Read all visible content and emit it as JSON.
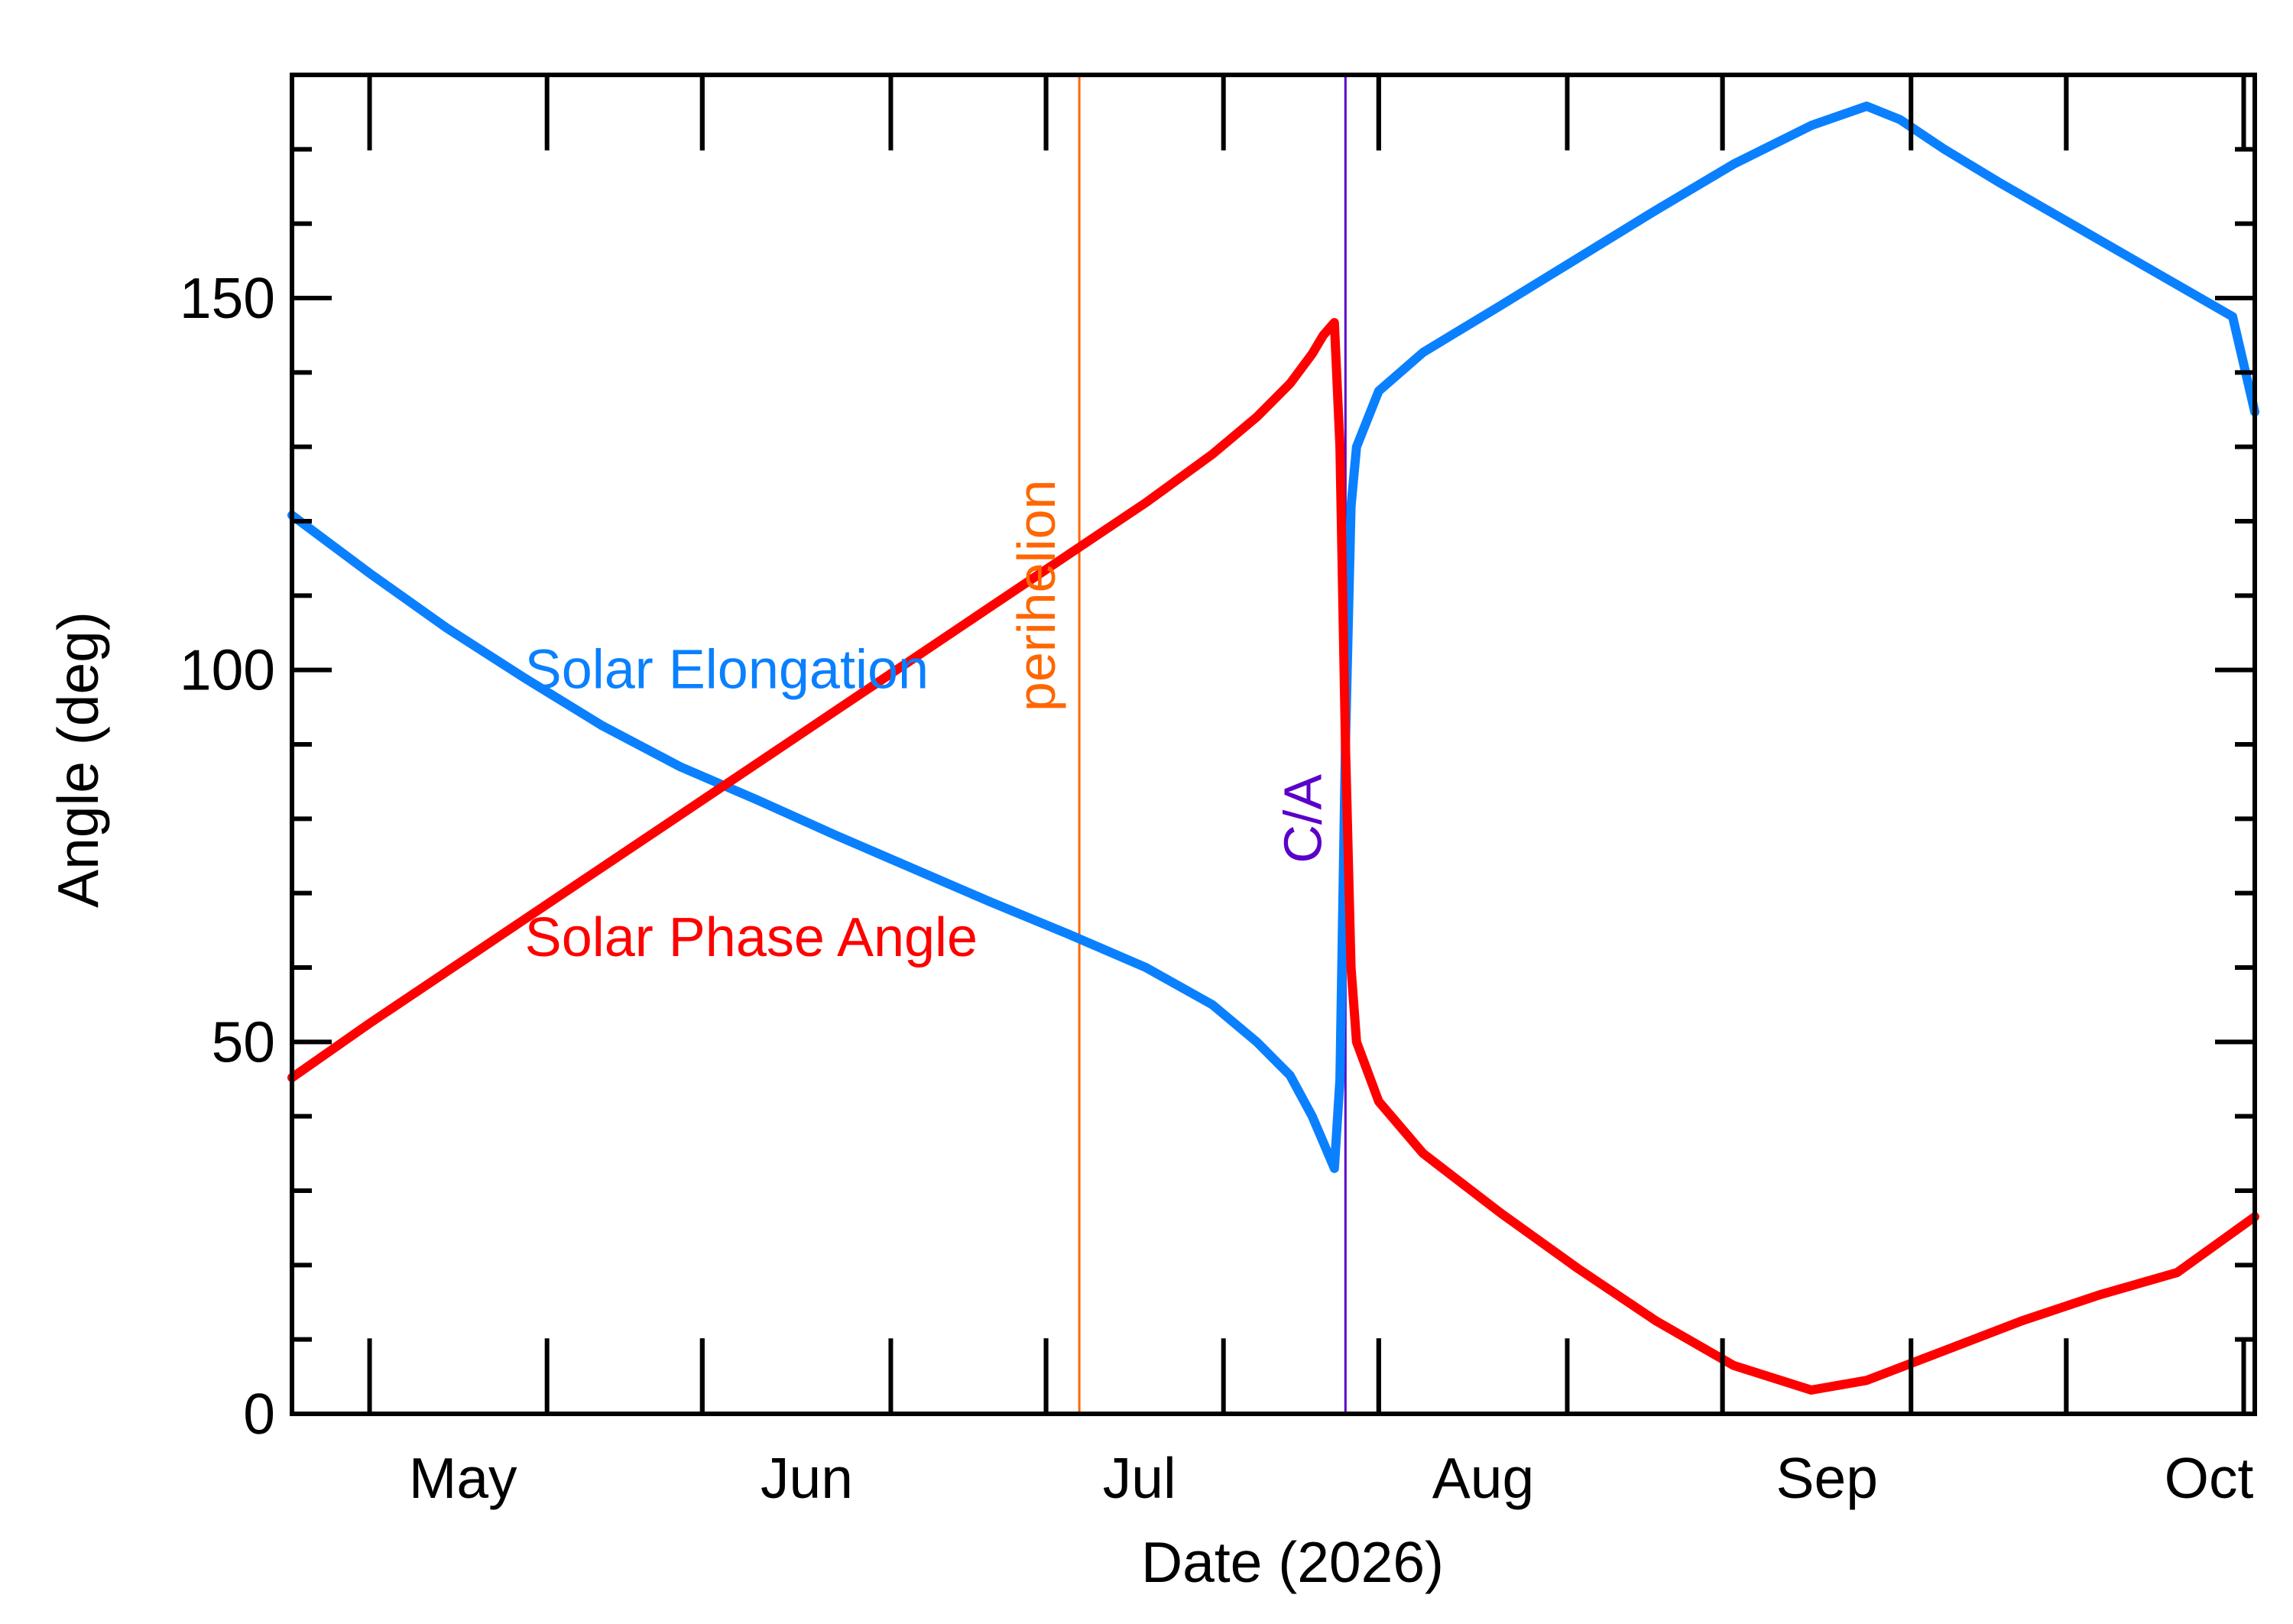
{
  "chart_data": {
    "type": "line",
    "xlabel": "Date (2026)",
    "ylabel": "Angle (deg)",
    "x_range": [
      "2026-04-08",
      "2026-10-02"
    ],
    "ylim": [
      0,
      180
    ],
    "x_ticks": [
      {
        "label": "May",
        "date": "2026-05-01"
      },
      {
        "label": "Jun",
        "date": "2026-06-01"
      },
      {
        "label": "Jul",
        "date": "2026-07-01"
      },
      {
        "label": "Aug",
        "date": "2026-08-01"
      },
      {
        "label": "Sep",
        "date": "2026-09-01"
      },
      {
        "label": "Oct",
        "date": "2026-10-01"
      }
    ],
    "y_ticks": [
      "0",
      "50",
      "100",
      "150"
    ],
    "grid": false,
    "series": [
      {
        "name": "Solar Elongation",
        "color": "#0a80ff",
        "points": [
          [
            "2026-04-08",
            120.8
          ],
          [
            "2026-04-15",
            113.0
          ],
          [
            "2026-04-22",
            105.6
          ],
          [
            "2026-04-29",
            98.9
          ],
          [
            "2026-05-06",
            92.5
          ],
          [
            "2026-05-13",
            87.0
          ],
          [
            "2026-05-20",
            82.5
          ],
          [
            "2026-05-27",
            77.8
          ],
          [
            "2026-06-03",
            73.3
          ],
          [
            "2026-06-10",
            68.8
          ],
          [
            "2026-06-17",
            64.5
          ],
          [
            "2026-06-24",
            60.0
          ],
          [
            "2026-06-30",
            55.0
          ],
          [
            "2026-07-04",
            50.0
          ],
          [
            "2026-07-07",
            45.5
          ],
          [
            "2026-07-09",
            40.0
          ],
          [
            "2026-07-10",
            36.5
          ],
          [
            "2026-07-11",
            33.0
          ],
          [
            "2026-07-11T12:00",
            45.0
          ],
          [
            "2026-07-12",
            90.0
          ],
          [
            "2026-07-12T12:00",
            122.0
          ],
          [
            "2026-07-13",
            130.0
          ],
          [
            "2026-07-15",
            137.5
          ],
          [
            "2026-07-19",
            142.7
          ],
          [
            "2026-07-26",
            149.0
          ],
          [
            "2026-08-02",
            155.4
          ],
          [
            "2026-08-09",
            161.8
          ],
          [
            "2026-08-16",
            168.0
          ],
          [
            "2026-08-23",
            173.2
          ],
          [
            "2026-08-28",
            175.8
          ],
          [
            "2026-08-31",
            174.0
          ],
          [
            "2026-09-04",
            170.0
          ],
          [
            "2026-09-09",
            165.5
          ],
          [
            "2026-09-16",
            159.5
          ],
          [
            "2026-09-23",
            153.5
          ],
          [
            "2026-09-30",
            147.5
          ],
          [
            "2026-10-02",
            134.7
          ]
        ]
      },
      {
        "name": "Solar Phase Angle",
        "color": "#ff0000",
        "points": [
          [
            "2026-04-08",
            45.2
          ],
          [
            "2026-04-15",
            52.5
          ],
          [
            "2026-04-22",
            59.5
          ],
          [
            "2026-04-29",
            66.5
          ],
          [
            "2026-05-06",
            73.5
          ],
          [
            "2026-05-13",
            80.5
          ],
          [
            "2026-05-20",
            87.5
          ],
          [
            "2026-05-27",
            94.5
          ],
          [
            "2026-06-03",
            101.5
          ],
          [
            "2026-06-10",
            108.5
          ],
          [
            "2026-06-17",
            115.5
          ],
          [
            "2026-06-24",
            122.5
          ],
          [
            "2026-06-30",
            129.0
          ],
          [
            "2026-07-04",
            134.0
          ],
          [
            "2026-07-07",
            138.5
          ],
          [
            "2026-07-09",
            142.5
          ],
          [
            "2026-07-10",
            145.0
          ],
          [
            "2026-07-11",
            146.7
          ],
          [
            "2026-07-11T12:00",
            130.0
          ],
          [
            "2026-07-12",
            90.0
          ],
          [
            "2026-07-12T12:00",
            60.0
          ],
          [
            "2026-07-13",
            50.0
          ],
          [
            "2026-07-15",
            42.0
          ],
          [
            "2026-07-19",
            35.0
          ],
          [
            "2026-07-26",
            27.0
          ],
          [
            "2026-08-02",
            19.5
          ],
          [
            "2026-08-09",
            12.5
          ],
          [
            "2026-08-16",
            6.5
          ],
          [
            "2026-08-23",
            3.2
          ],
          [
            "2026-08-28",
            4.5
          ],
          [
            "2026-09-04",
            8.5
          ],
          [
            "2026-09-11",
            12.5
          ],
          [
            "2026-09-18",
            16.0
          ],
          [
            "2026-09-25",
            19.0
          ],
          [
            "2026-10-02",
            26.5
          ]
        ]
      }
    ],
    "series_labels": [
      {
        "text": "Solar Elongation",
        "color": "#0a80ff",
        "anchor": [
          "2026-04-29",
          100
        ]
      },
      {
        "text": "Solar Phase Angle",
        "color": "#ff0000",
        "anchor": [
          "2026-04-29",
          64
        ]
      }
    ],
    "events": [
      {
        "label": "perihelion",
        "date": "2026-06-18",
        "color": "#ff6600",
        "label_y": 110
      },
      {
        "label": "C/A",
        "date": "2026-07-12",
        "color": "#5a00c8",
        "label_y": 80
      }
    ]
  }
}
